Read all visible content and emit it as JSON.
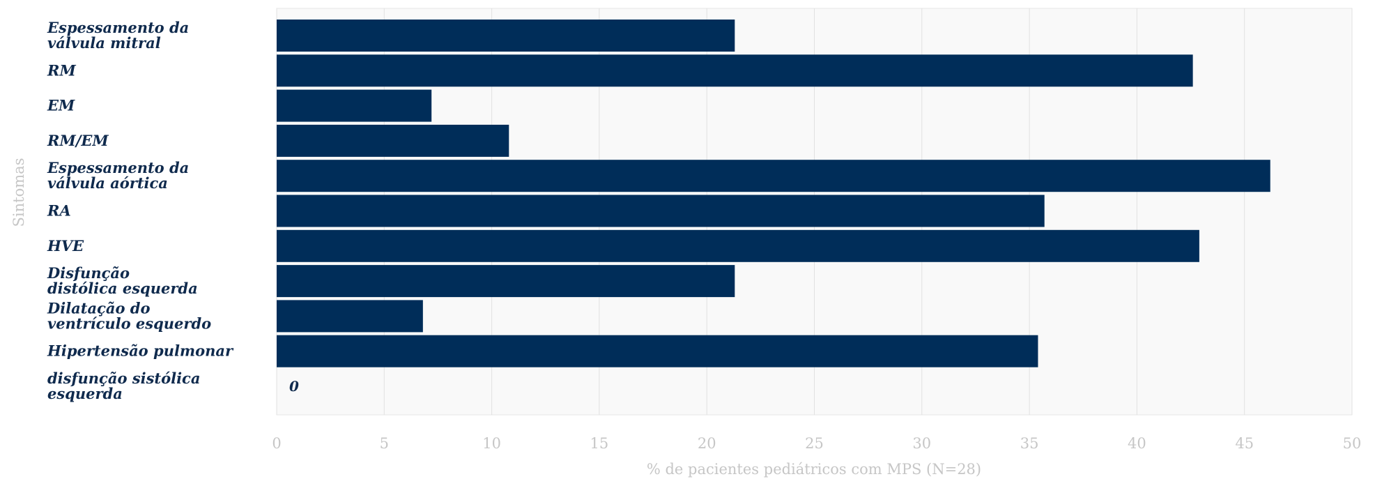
{
  "chart_data": {
    "type": "bar",
    "orientation": "horizontal",
    "categories": [
      [
        "Espessamento da",
        "válvula mitral"
      ],
      [
        "RM"
      ],
      [
        "EM"
      ],
      [
        "RM/EM"
      ],
      [
        "Espessamento da",
        "válvula aórtica"
      ],
      [
        "RA"
      ],
      [
        "HVE"
      ],
      [
        "Disfunção",
        "distólica esquerda"
      ],
      [
        "Dilatação do",
        "ventrículo esquerdo"
      ],
      [
        "Hipertensão pulmonar"
      ],
      [
        "disfunção sistólica",
        "esquerda"
      ]
    ],
    "values": [
      21.3,
      42.6,
      7.2,
      10.8,
      46.2,
      35.7,
      42.9,
      21.3,
      6.8,
      35.4,
      0
    ],
    "data_labels": [
      "",
      "",
      "",
      "",
      "",
      "",
      "",
      "",
      "",
      "",
      "0"
    ],
    "xlabel": "% de pacientes pediátricos com MPS (N=28)",
    "ylabel": "Sintomas",
    "xlim": [
      0,
      50
    ],
    "xticks": [
      0,
      5,
      10,
      15,
      20,
      25,
      30,
      35,
      40,
      45,
      50
    ],
    "grid": "vertical",
    "colors": {
      "bar": "#002d59",
      "plot_background": "#f9f9f9",
      "grid": "#e1e1e1",
      "category_text": "#0f2a4d",
      "axis_text": "#c6c6c6"
    }
  }
}
